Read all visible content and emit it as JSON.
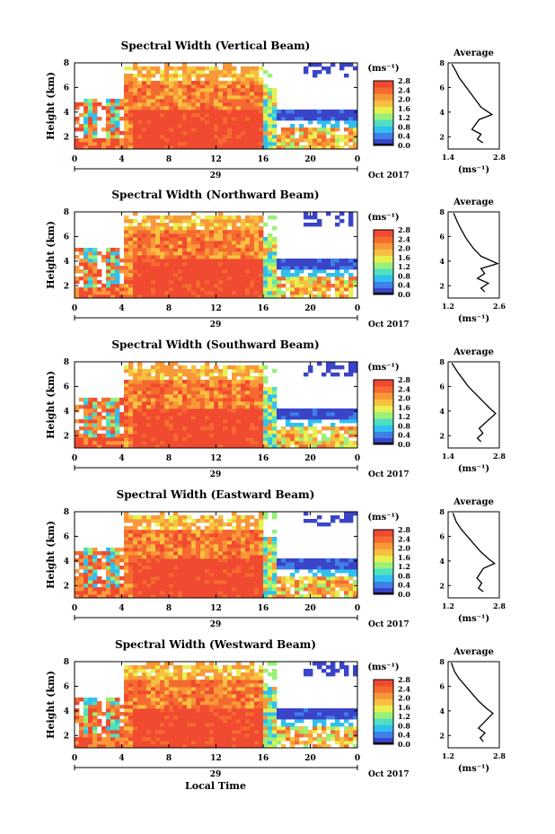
{
  "x_axis_title": "Local Time",
  "date_label": "29",
  "month_label": "Oct 2017",
  "colorbar_unit": "(ms⁻¹)",
  "avg_unit": "(ms⁻¹)",
  "colorbar_ticks": [
    "0.0",
    "0.4",
    "0.8",
    "1.2",
    "1.6",
    "2.0",
    "2.4",
    "2.8"
  ],
  "colors": [
    "#ffffff",
    "#3a44c8",
    "#3f7fe8",
    "#2fc0f0",
    "#4fe0c0",
    "#9af078",
    "#e8f050",
    "#f8c040",
    "#f89838",
    "#f56a30",
    "#f04a30"
  ],
  "chart_data": [
    {
      "type": "heatmap",
      "title": "Spectral Width (Vertical Beam)",
      "ylabel": "Height (km)",
      "x_ticks": [
        "0",
        "4",
        "8",
        "12",
        "16",
        "20",
        "0"
      ],
      "y_ticks": [
        "2",
        "4",
        "6",
        "8"
      ],
      "xlim": [
        0,
        24
      ],
      "ylim": [
        1,
        8
      ],
      "avg_title": "Average",
      "avg_xlim": [
        1.4,
        2.8
      ],
      "avg_xticks": [
        "1.4",
        "2.8"
      ],
      "avg_profile": [
        [
          2.35,
          1.5
        ],
        [
          2.2,
          1.8
        ],
        [
          2.3,
          2.2
        ],
        [
          2.05,
          2.6
        ],
        [
          2.15,
          3.0
        ],
        [
          2.25,
          3.4
        ],
        [
          2.6,
          3.8
        ],
        [
          2.5,
          4.0
        ],
        [
          2.3,
          4.4
        ],
        [
          2.15,
          5.0
        ],
        [
          2.0,
          5.6
        ],
        [
          1.85,
          6.2
        ],
        [
          1.7,
          6.8
        ],
        [
          1.6,
          7.4
        ],
        [
          1.5,
          7.9
        ]
      ]
    },
    {
      "type": "heatmap",
      "title": "Spectral Width (Northward Beam)",
      "ylabel": "Height (km)",
      "x_ticks": [
        "0",
        "4",
        "8",
        "12",
        "16",
        "20",
        "0"
      ],
      "y_ticks": [
        "2",
        "4",
        "6",
        "8"
      ],
      "xlim": [
        0,
        24
      ],
      "ylim": [
        1,
        8
      ],
      "avg_title": "Average",
      "avg_xlim": [
        1.2,
        2.6
      ],
      "avg_xticks": [
        "1.2",
        "2.6"
      ],
      "avg_profile": [
        [
          2.2,
          1.5
        ],
        [
          2.1,
          1.8
        ],
        [
          2.3,
          2.2
        ],
        [
          2.0,
          2.6
        ],
        [
          2.2,
          3.0
        ],
        [
          2.1,
          3.4
        ],
        [
          2.55,
          3.8
        ],
        [
          2.4,
          4.0
        ],
        [
          2.1,
          4.4
        ],
        [
          1.9,
          5.0
        ],
        [
          1.7,
          5.8
        ],
        [
          1.55,
          6.6
        ],
        [
          1.45,
          7.2
        ],
        [
          1.35,
          7.9
        ]
      ]
    },
    {
      "type": "heatmap",
      "title": "Spectral Width (Southward Beam)",
      "ylabel": "Height (km)",
      "x_ticks": [
        "0",
        "4",
        "8",
        "12",
        "16",
        "20",
        "0"
      ],
      "y_ticks": [
        "2",
        "4",
        "6",
        "8"
      ],
      "xlim": [
        0,
        24
      ],
      "ylim": [
        1,
        8
      ],
      "avg_title": "Average",
      "avg_xlim": [
        1.4,
        2.8
      ],
      "avg_xticks": [
        "1.4",
        "2.8"
      ],
      "avg_profile": [
        [
          2.3,
          1.5
        ],
        [
          2.2,
          1.8
        ],
        [
          2.35,
          2.2
        ],
        [
          2.25,
          2.6
        ],
        [
          2.4,
          3.0
        ],
        [
          2.55,
          3.4
        ],
        [
          2.7,
          3.8
        ],
        [
          2.55,
          4.2
        ],
        [
          2.35,
          4.8
        ],
        [
          2.15,
          5.4
        ],
        [
          1.95,
          6.0
        ],
        [
          1.8,
          6.6
        ],
        [
          1.65,
          7.2
        ],
        [
          1.5,
          7.9
        ]
      ]
    },
    {
      "type": "heatmap",
      "title": "Spectral Width (Eastward Beam)",
      "ylabel": "Height (km)",
      "x_ticks": [
        "0",
        "4",
        "8",
        "12",
        "16",
        "20",
        "0"
      ],
      "y_ticks": [
        "2",
        "4",
        "6",
        "8"
      ],
      "xlim": [
        0,
        24
      ],
      "ylim": [
        1,
        8
      ],
      "avg_title": "Average",
      "avg_xlim": [
        1.2,
        2.8
      ],
      "avg_xticks": [
        "1.2",
        "2.8"
      ],
      "avg_profile": [
        [
          2.3,
          1.5
        ],
        [
          2.15,
          1.8
        ],
        [
          2.25,
          2.2
        ],
        [
          2.1,
          2.6
        ],
        [
          2.2,
          3.0
        ],
        [
          2.3,
          3.4
        ],
        [
          2.65,
          3.8
        ],
        [
          2.45,
          4.2
        ],
        [
          2.2,
          4.8
        ],
        [
          2.0,
          5.4
        ],
        [
          1.8,
          6.0
        ],
        [
          1.6,
          6.6
        ],
        [
          1.45,
          7.2
        ],
        [
          1.35,
          7.9
        ]
      ]
    },
    {
      "type": "heatmap",
      "title": "Spectral Width (Westward Beam)",
      "ylabel": "Height (km)",
      "x_ticks": [
        "0",
        "4",
        "8",
        "12",
        "16",
        "20",
        "0"
      ],
      "y_ticks": [
        "2",
        "4",
        "6",
        "8"
      ],
      "xlim": [
        0,
        24
      ],
      "ylim": [
        1,
        8
      ],
      "avg_title": "Average",
      "avg_xlim": [
        1.2,
        2.8
      ],
      "avg_xticks": [
        "1.2",
        "2.8"
      ],
      "avg_profile": [
        [
          2.3,
          1.5
        ],
        [
          2.2,
          1.8
        ],
        [
          2.35,
          2.2
        ],
        [
          2.15,
          2.6
        ],
        [
          2.3,
          3.0
        ],
        [
          2.45,
          3.4
        ],
        [
          2.6,
          3.8
        ],
        [
          2.4,
          4.2
        ],
        [
          2.15,
          4.8
        ],
        [
          1.95,
          5.4
        ],
        [
          1.75,
          6.0
        ],
        [
          1.55,
          6.6
        ],
        [
          1.4,
          7.2
        ],
        [
          1.3,
          7.9
        ]
      ]
    }
  ]
}
